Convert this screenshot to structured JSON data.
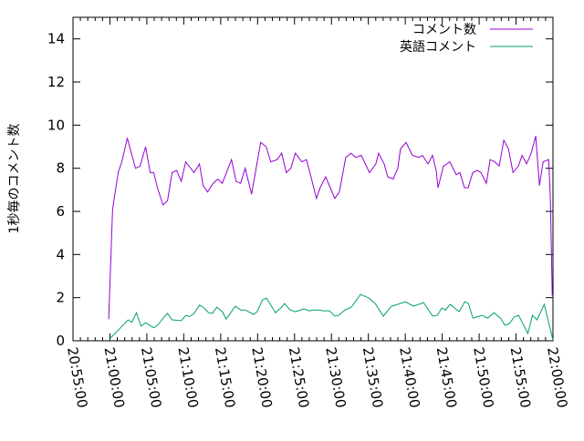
{
  "chart_data": {
    "type": "line",
    "title": "",
    "xlabel": "",
    "ylabel": "1秒毎のコメント数",
    "xlim": [
      "20:55:00",
      "22:00:00"
    ],
    "ylim": [
      0,
      15
    ],
    "x_ticks": [
      "20:55:00",
      "21:00:00",
      "21:05:00",
      "21:10:00",
      "21:15:00",
      "21:20:00",
      "21:25:00",
      "21:30:00",
      "21:35:00",
      "21:40:00",
      "21:45:00",
      "21:50:00",
      "21:55:00",
      "22:00:00"
    ],
    "y_ticks": [
      "0",
      "2",
      "4",
      "6",
      "8",
      "10",
      "12",
      "14"
    ],
    "grid": false,
    "legend_position": "top-right",
    "series": [
      {
        "name": "コメント数",
        "color": "#9400d3",
        "points": [
          [
            "20:59:50",
            1.0
          ],
          [
            "21:00:22",
            6.1
          ],
          [
            "21:01:07",
            7.8
          ],
          [
            "21:01:37",
            8.3
          ],
          [
            "21:02:21",
            9.4
          ],
          [
            "21:03:28",
            8.0
          ],
          [
            "21:04:05",
            8.1
          ],
          [
            "21:04:50",
            9.0
          ],
          [
            "21:05:27",
            7.8
          ],
          [
            "21:05:56",
            7.8
          ],
          [
            "21:06:26",
            7.1
          ],
          [
            "21:07:11",
            6.3
          ],
          [
            "21:07:48",
            6.5
          ],
          [
            "21:08:25",
            7.8
          ],
          [
            "21:09:02",
            7.9
          ],
          [
            "21:09:39",
            7.4
          ],
          [
            "21:10:16",
            8.3
          ],
          [
            "21:11:23",
            7.8
          ],
          [
            "21:12:08",
            8.2
          ],
          [
            "21:12:37",
            7.2
          ],
          [
            "21:13:14",
            6.9
          ],
          [
            "21:13:59",
            7.3
          ],
          [
            "21:14:36",
            7.5
          ],
          [
            "21:15:13",
            7.3
          ],
          [
            "21:16:28",
            8.4
          ],
          [
            "21:17:05",
            7.4
          ],
          [
            "21:17:42",
            7.3
          ],
          [
            "21:18:19",
            8.0
          ],
          [
            "21:19:11",
            6.8
          ],
          [
            "21:20:25",
            9.2
          ],
          [
            "21:21:10",
            9.0
          ],
          [
            "21:21:47",
            8.3
          ],
          [
            "21:22:39",
            8.4
          ],
          [
            "21:23:16",
            8.7
          ],
          [
            "21:23:53",
            7.8
          ],
          [
            "21:24:30",
            8.0
          ],
          [
            "21:25:07",
            8.7
          ],
          [
            "21:25:59",
            8.3
          ],
          [
            "21:26:37",
            8.4
          ],
          [
            "21:27:14",
            7.6
          ],
          [
            "21:27:58",
            6.6
          ],
          [
            "21:28:28",
            7.1
          ],
          [
            "21:29:13",
            7.6
          ],
          [
            "21:29:50",
            7.1
          ],
          [
            "21:30:27",
            6.6
          ],
          [
            "21:31:04",
            6.9
          ],
          [
            "21:31:56",
            8.5
          ],
          [
            "21:32:40",
            8.7
          ],
          [
            "21:33:17",
            8.5
          ],
          [
            "21:34:02",
            8.6
          ],
          [
            "21:35:09",
            7.8
          ],
          [
            "21:36:01",
            8.2
          ],
          [
            "21:36:23",
            8.7
          ],
          [
            "21:37:08",
            8.2
          ],
          [
            "21:37:37",
            7.6
          ],
          [
            "21:38:22",
            7.5
          ],
          [
            "21:38:59",
            8.0
          ],
          [
            "21:39:21",
            8.9
          ],
          [
            "21:40:06",
            9.2
          ],
          [
            "21:40:58",
            8.6
          ],
          [
            "21:41:50",
            8.5
          ],
          [
            "21:42:20",
            8.6
          ],
          [
            "21:43:04",
            8.2
          ],
          [
            "21:43:41",
            8.6
          ],
          [
            "21:44:11",
            7.9
          ],
          [
            "21:44:26",
            7.1
          ],
          [
            "21:45:10",
            8.1
          ],
          [
            "21:46:02",
            8.3
          ],
          [
            "21:46:54",
            7.7
          ],
          [
            "21:47:24",
            7.8
          ],
          [
            "21:48:01",
            7.1
          ],
          [
            "21:48:31",
            7.1
          ],
          [
            "21:49:08",
            7.8
          ],
          [
            "21:49:45",
            7.9
          ],
          [
            "21:50:15",
            7.8
          ],
          [
            "21:50:59",
            7.3
          ],
          [
            "21:51:29",
            8.4
          ],
          [
            "21:52:06",
            8.3
          ],
          [
            "21:52:43",
            8.1
          ],
          [
            "21:53:20",
            9.3
          ],
          [
            "21:53:58",
            8.9
          ],
          [
            "21:54:35",
            7.8
          ],
          [
            "21:55:19",
            8.1
          ],
          [
            "21:55:49",
            8.6
          ],
          [
            "21:56:26",
            8.2
          ],
          [
            "21:57:03",
            8.7
          ],
          [
            "21:57:40",
            9.5
          ],
          [
            "21:58:10",
            7.2
          ],
          [
            "21:58:40",
            8.3
          ],
          [
            "21:59:25",
            8.4
          ],
          [
            "21:59:39",
            6.5
          ],
          [
            "21:59:54",
            2.1
          ]
        ]
      },
      {
        "name": "英語コメント",
        "color": "#009e73",
        "points": [
          [
            "21:00:00",
            0.1
          ],
          [
            "21:02:29",
            0.97
          ],
          [
            "21:02:58",
            0.85
          ],
          [
            "21:03:35",
            1.3
          ],
          [
            "21:04:13",
            0.67
          ],
          [
            "21:04:50",
            0.84
          ],
          [
            "21:05:57",
            0.6
          ],
          [
            "21:06:34",
            0.76
          ],
          [
            "21:07:26",
            1.14
          ],
          [
            "21:07:48",
            1.27
          ],
          [
            "21:08:25",
            0.97
          ],
          [
            "21:09:40",
            0.93
          ],
          [
            "21:10:17",
            1.18
          ],
          [
            "21:10:46",
            1.12
          ],
          [
            "21:11:24",
            1.27
          ],
          [
            "21:12:08",
            1.65
          ],
          [
            "21:12:38",
            1.56
          ],
          [
            "21:13:22",
            1.3
          ],
          [
            "21:13:52",
            1.27
          ],
          [
            "21:14:29",
            1.56
          ],
          [
            "21:15:14",
            1.35
          ],
          [
            "21:15:44",
            1.0
          ],
          [
            "21:16:58",
            1.6
          ],
          [
            "21:17:42",
            1.43
          ],
          [
            "21:18:20",
            1.43
          ],
          [
            "21:19:27",
            1.22
          ],
          [
            "21:19:56",
            1.35
          ],
          [
            "21:20:41",
            1.9
          ],
          [
            "21:21:11",
            1.98
          ],
          [
            "21:21:40",
            1.73
          ],
          [
            "21:22:25",
            1.3
          ],
          [
            "21:23:09",
            1.52
          ],
          [
            "21:23:39",
            1.73
          ],
          [
            "21:24:24",
            1.43
          ],
          [
            "21:25:08",
            1.35
          ],
          [
            "21:26:15",
            1.48
          ],
          [
            "21:27:00",
            1.39
          ],
          [
            "21:27:37",
            1.43
          ],
          [
            "21:28:21",
            1.43
          ],
          [
            "21:28:51",
            1.39
          ],
          [
            "21:29:43",
            1.39
          ],
          [
            "21:30:28",
            1.14
          ],
          [
            "21:30:58",
            1.18
          ],
          [
            "21:31:50",
            1.43
          ],
          [
            "21:32:42",
            1.56
          ],
          [
            "21:33:56",
            2.15
          ],
          [
            "21:35:03",
            1.98
          ],
          [
            "21:35:55",
            1.73
          ],
          [
            "21:37:02",
            1.14
          ],
          [
            "21:38:08",
            1.6
          ],
          [
            "21:39:00",
            1.69
          ],
          [
            "21:40:00",
            1.81
          ],
          [
            "21:41:07",
            1.6
          ],
          [
            "21:42:28",
            1.77
          ],
          [
            "21:43:43",
            1.14
          ],
          [
            "21:44:20",
            1.18
          ],
          [
            "21:44:57",
            1.52
          ],
          [
            "21:45:27",
            1.43
          ],
          [
            "21:46:04",
            1.69
          ],
          [
            "21:47:18",
            1.35
          ],
          [
            "21:48:03",
            1.81
          ],
          [
            "21:48:33",
            1.73
          ],
          [
            "21:49:10",
            1.05
          ],
          [
            "21:50:24",
            1.18
          ],
          [
            "21:51:09",
            1.05
          ],
          [
            "21:52:01",
            1.3
          ],
          [
            "21:52:53",
            1.05
          ],
          [
            "21:53:30",
            0.72
          ],
          [
            "21:54:07",
            0.8
          ],
          [
            "21:54:44",
            1.1
          ],
          [
            "21:55:21",
            1.18
          ],
          [
            "21:56:36",
            0.34
          ],
          [
            "21:57:13",
            1.18
          ],
          [
            "21:57:50",
            0.97
          ],
          [
            "21:58:49",
            1.69
          ],
          [
            "22:00:00",
            0.04
          ]
        ]
      }
    ]
  }
}
